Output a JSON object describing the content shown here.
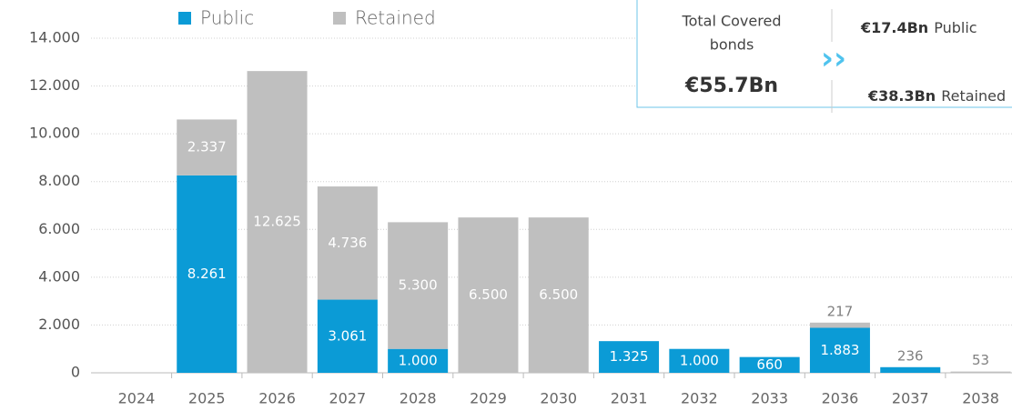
{
  "chart_data": {
    "type": "stacked_bar",
    "categories": [
      "2024",
      "2025",
      "2026",
      "2027",
      "2028",
      "2029",
      "2030",
      "2031",
      "2032",
      "2033",
      "2036",
      "2037",
      "2038"
    ],
    "series": [
      {
        "name": "Public",
        "color": "#0b9bd6",
        "values": [
          null,
          8261,
          null,
          3061,
          1000,
          null,
          null,
          1325,
          1000,
          660,
          1883,
          236,
          null
        ],
        "value_labels": [
          null,
          "8.261",
          null,
          "3.061",
          "1.000",
          null,
          null,
          "1.325",
          "1.000",
          "660",
          "1.883",
          "236",
          null
        ]
      },
      {
        "name": "Retained",
        "color": "#bfbfbf",
        "values": [
          null,
          2337,
          12625,
          4736,
          5300,
          6500,
          6500,
          null,
          null,
          null,
          217,
          null,
          53
        ],
        "value_labels": [
          null,
          "2.337",
          "12.625",
          "4.736",
          "5.300",
          "6.500",
          "6.500",
          null,
          null,
          null,
          "217",
          null,
          "53"
        ]
      }
    ],
    "ylim": [
      0,
      14000
    ],
    "yticks": [
      0,
      {
        "value": 2000,
        "label": "2.000"
      },
      {
        "value": 4000,
        "label": "4.000"
      },
      {
        "value": 6000,
        "label": "6.000"
      },
      {
        "value": 8000,
        "label": "8.000"
      },
      {
        "value": 10000,
        "label": "10.000"
      },
      {
        "value": 12000,
        "label": "12.000"
      },
      {
        "value": 14000,
        "label": "14.000"
      }
    ],
    "grid": true,
    "legend": "top"
  },
  "info_box": {
    "title_lines": [
      "Total Covered",
      "bonds"
    ],
    "total": "€55.7Bn",
    "items": [
      {
        "amount": "€17.4Bn",
        "label": "Public"
      },
      {
        "amount": "€38.3Bn",
        "label": "Retained"
      }
    ]
  }
}
